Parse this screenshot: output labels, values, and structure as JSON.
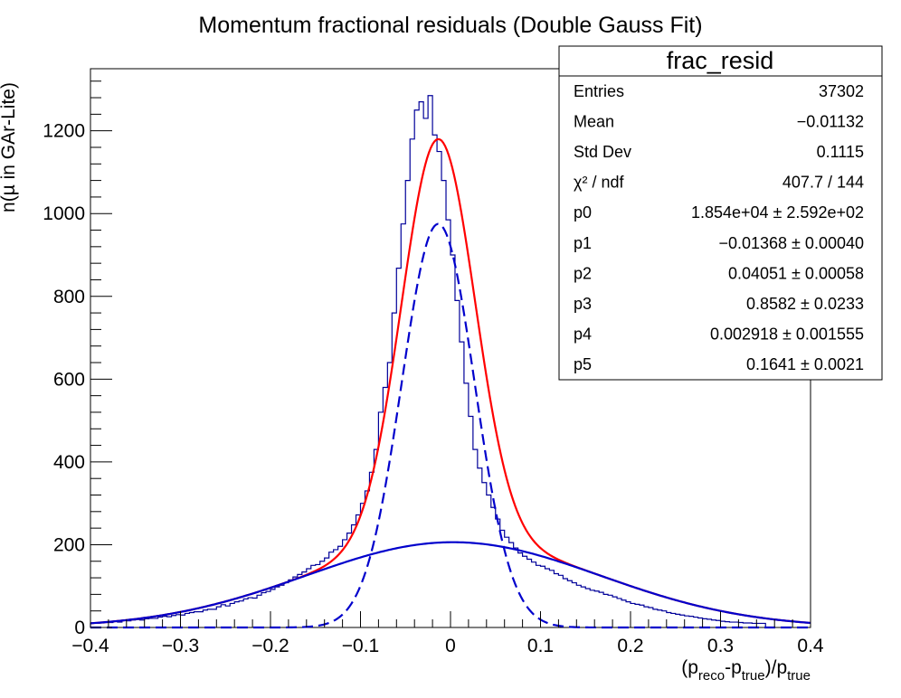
{
  "chart_data": {
    "type": "histogram",
    "title": "Momentum fractional residuals (Double Gauss Fit)",
    "xlabel": {
      "base": "(p",
      "sub1": "reco",
      "mid": "-p",
      "sub2": "true",
      "tail": ")/p",
      "sub3": "true"
    },
    "ylabel": {
      "base": "n(µ in GAr-Lite)"
    },
    "xlim": [
      -0.4,
      0.4
    ],
    "ylim": [
      0,
      1350
    ],
    "x_ticks": [
      {
        "value": -0.4,
        "label": "−0.4"
      },
      {
        "value": -0.3,
        "label": "−0.3"
      },
      {
        "value": -0.2,
        "label": "−0.2"
      },
      {
        "value": -0.1,
        "label": "−0.1"
      },
      {
        "value": 0,
        "label": "0"
      },
      {
        "value": 0.1,
        "label": "0.1"
      },
      {
        "value": 0.2,
        "label": "0.2"
      },
      {
        "value": 0.3,
        "label": "0.3"
      },
      {
        "value": 0.4,
        "label": "0.4"
      }
    ],
    "y_ticks": [
      {
        "value": 0,
        "label": "0"
      },
      {
        "value": 200,
        "label": "200"
      },
      {
        "value": 400,
        "label": "400"
      },
      {
        "value": 600,
        "label": "600"
      },
      {
        "value": 800,
        "label": "800"
      },
      {
        "value": 1000,
        "label": "1000"
      },
      {
        "value": 1200,
        "label": "1200"
      }
    ],
    "grid": false,
    "histogram": {
      "name": "frac_resid",
      "color": "#000099",
      "bin_width": 0.005,
      "x_start": -0.4,
      "counts": [
        10,
        10,
        11,
        12,
        12,
        15,
        13,
        17,
        16,
        18,
        19,
        18,
        21,
        22,
        22,
        25,
        27,
        26,
        29,
        31,
        30,
        34,
        36,
        38,
        38,
        42,
        44,
        44,
        50,
        55,
        52,
        58,
        62,
        64,
        69,
        72,
        71,
        78,
        84,
        87,
        92,
        98,
        102,
        108,
        115,
        122,
        128,
        134,
        142,
        150,
        152,
        160,
        168,
        182,
        188,
        196,
        212,
        228,
        248,
        272,
        300,
        330,
        375,
        430,
        520,
        580,
        640,
        760,
        868,
        975,
        1080,
        1180,
        1250,
        1270,
        1230,
        1285,
        1190,
        1150,
        1080,
        985,
        900,
        790,
        690,
        590,
        510,
        430,
        385,
        350,
        320,
        290,
        262,
        235,
        218,
        205,
        192,
        180,
        172,
        165,
        158,
        150,
        148,
        142,
        138,
        130,
        126,
        118,
        113,
        108,
        102,
        98,
        94,
        90,
        88,
        85,
        80,
        78,
        74,
        70,
        66,
        62,
        58,
        56,
        54,
        50,
        48,
        44,
        42,
        40,
        36,
        34,
        32,
        30,
        28,
        27,
        25,
        23,
        21,
        20,
        18,
        17,
        15,
        14,
        13,
        13,
        12,
        11,
        11,
        10,
        10,
        10
      ]
    },
    "fits": [
      {
        "name": "total",
        "color": "#ff0000",
        "style": "solid",
        "A1": 975,
        "mu1": -0.01368,
        "s1": 0.04051,
        "A2": 206,
        "mu2": 0.002918,
        "s2": 0.1641
      },
      {
        "name": "narrow",
        "color": "#0000cc",
        "style": "dashed",
        "A1": 975,
        "mu1": -0.01368,
        "s1": 0.04051,
        "A2": 0,
        "mu2": 0,
        "s2": 1
      },
      {
        "name": "wide",
        "color": "#0000cc",
        "style": "solid",
        "A1": 0,
        "mu1": 0,
        "s1": 1,
        "A2": 206,
        "mu2": 0.002918,
        "s2": 0.1641
      }
    ],
    "stats_box": {
      "title": "frac_resid",
      "rows": [
        {
          "label": "Entries",
          "value": "37302"
        },
        {
          "label": "Mean",
          "value": "−0.01132"
        },
        {
          "label": "Std Dev",
          "value": "0.1115"
        },
        {
          "label": "χ² / ndf",
          "value": "407.7 / 144"
        },
        {
          "label": "p0",
          "value": "1.854e+04 ± 2.592e+02"
        },
        {
          "label": "p1",
          "value": "−0.01368 ± 0.00040"
        },
        {
          "label": "p2",
          "value": "0.04051 ± 0.00058"
        },
        {
          "label": "p3",
          "value": "0.8582 ± 0.0233"
        },
        {
          "label": "p4",
          "value": "0.002918 ± 0.001555"
        },
        {
          "label": "p5",
          "value": "0.1641 ± 0.0021"
        }
      ]
    }
  }
}
